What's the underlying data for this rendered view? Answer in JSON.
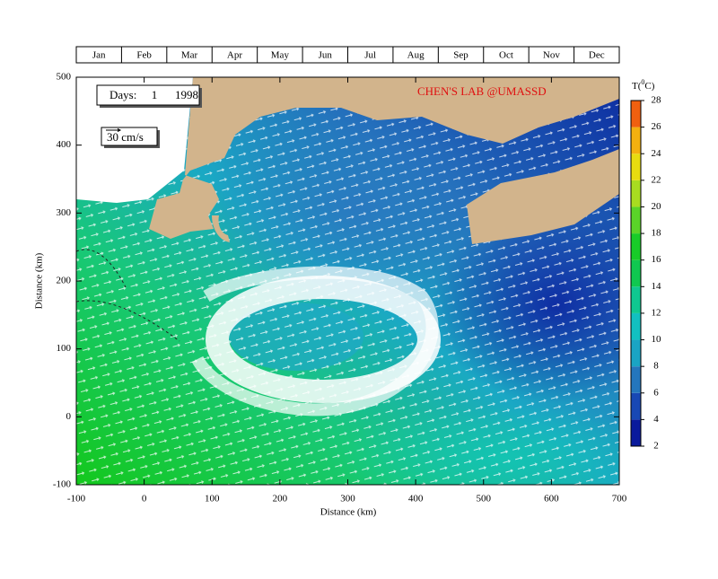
{
  "chart_data": {
    "type": "field",
    "months": [
      "Jan",
      "Feb",
      "Mar",
      "Apr",
      "May",
      "Jun",
      "Jul",
      "Aug",
      "Sep",
      "Oct",
      "Nov",
      "Dec"
    ],
    "days_label": "Days:",
    "day": "1",
    "year": "1998",
    "lab": "CHEN'S  LAB @UMASSD",
    "scale_label": "30 cm/s",
    "xlabel": "Distance (km)",
    "ylabel": "Distance (km)",
    "xlim": [
      -100,
      700
    ],
    "xticks": [
      -100,
      0,
      100,
      200,
      300,
      400,
      500,
      600,
      700
    ],
    "ylim": [
      -100,
      500
    ],
    "yticks": [
      -100,
      0,
      100,
      200,
      300,
      400,
      500
    ],
    "colorbar": {
      "label_prefix": "T(",
      "label_sup": "0",
      "label_suffix": "C)",
      "lim": [
        2,
        28
      ],
      "ticks": [
        2,
        4,
        6,
        8,
        10,
        12,
        14,
        16,
        18,
        20,
        22,
        24,
        26,
        28
      ],
      "colors": [
        "#0a1a9c",
        "#1848b4",
        "#2476bc",
        "#1aa4c4",
        "#12c0c0",
        "#10c890",
        "#10c850",
        "#18cc28",
        "#5ad428",
        "#a8dc20",
        "#e8dc10",
        "#f4b010",
        "#f06010"
      ]
    }
  }
}
